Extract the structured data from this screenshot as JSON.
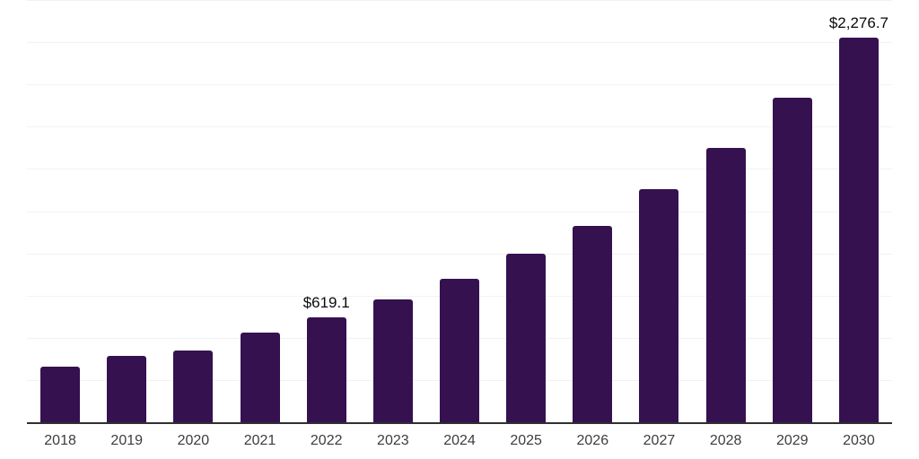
{
  "chart_data": {
    "type": "bar",
    "title": "",
    "xlabel": "",
    "ylabel": "",
    "categories": [
      "2018",
      "2019",
      "2020",
      "2021",
      "2022",
      "2023",
      "2024",
      "2025",
      "2026",
      "2027",
      "2028",
      "2029",
      "2030"
    ],
    "values": [
      331,
      393,
      423,
      529,
      619.1,
      726,
      850,
      1000,
      1164,
      1381,
      1625,
      1922,
      2276.7
    ],
    "data_labels": [
      "",
      "",
      "",
      "",
      "$619.1",
      "",
      "",
      "",
      "",
      "",
      "",
      "",
      "$2,276.7"
    ],
    "ylim": [
      0,
      2500
    ],
    "gridline_step": 250,
    "grid": "horizontal-only",
    "legend": "none",
    "y_axis_labels_visible": false,
    "colors": {
      "bar": "#351150",
      "gridline": "#f2f2f2",
      "axis_line": "#303030",
      "tick_label": "#3d3d3d",
      "data_label": "#0a0a0a",
      "background": "#ffffff"
    }
  }
}
